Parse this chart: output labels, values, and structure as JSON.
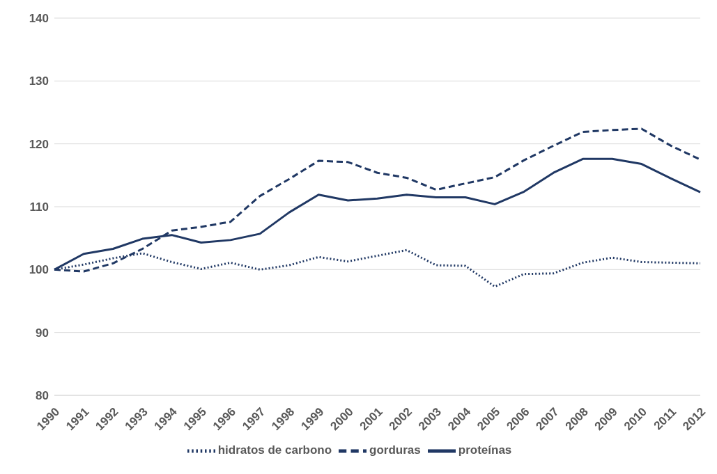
{
  "chart_data": {
    "type": "line",
    "categories": [
      "1990",
      "1991",
      "1992",
      "1993",
      "1994",
      "1995",
      "1996",
      "1997",
      "1998",
      "1999",
      "2000",
      "2001",
      "2002",
      "2003",
      "2004",
      "2005",
      "2006",
      "2007",
      "2008",
      "2009",
      "2010",
      "2011",
      "2012"
    ],
    "series": [
      {
        "name": "hidratos de carbono",
        "color": "#203864",
        "line_style": "dotted",
        "values": [
          100,
          100.8,
          101.8,
          102.6,
          101.2,
          100.1,
          101.1,
          100.0,
          100.7,
          102.0,
          101.3,
          102.2,
          103.1,
          100.7,
          100.6,
          97.3,
          99.3,
          99.4,
          101.1,
          101.9,
          101.2,
          101.1,
          101.0
        ]
      },
      {
        "name": "gorduras",
        "color": "#203864",
        "line_style": "dashed",
        "values": [
          100,
          99.7,
          101.0,
          103.3,
          106.2,
          106.8,
          107.6,
          111.7,
          114.4,
          117.3,
          117.1,
          115.4,
          114.6,
          112.7,
          113.7,
          114.7,
          117.4,
          119.7,
          121.9,
          122.2,
          122.4,
          119.7,
          117.5
        ]
      },
      {
        "name": "proteínas",
        "color": "#203864",
        "line_style": "solid",
        "values": [
          100,
          102.5,
          103.3,
          104.9,
          105.5,
          104.3,
          104.7,
          105.7,
          109.1,
          111.9,
          111.0,
          111.3,
          111.9,
          111.5,
          111.5,
          110.4,
          112.4,
          115.4,
          117.6,
          117.6,
          116.8,
          114.5,
          112.3
        ]
      }
    ],
    "ylim": [
      80,
      140
    ],
    "yticks": [
      80,
      90,
      100,
      110,
      120,
      130,
      140
    ],
    "grid": "y",
    "legend": "bottom",
    "marker": "none"
  }
}
